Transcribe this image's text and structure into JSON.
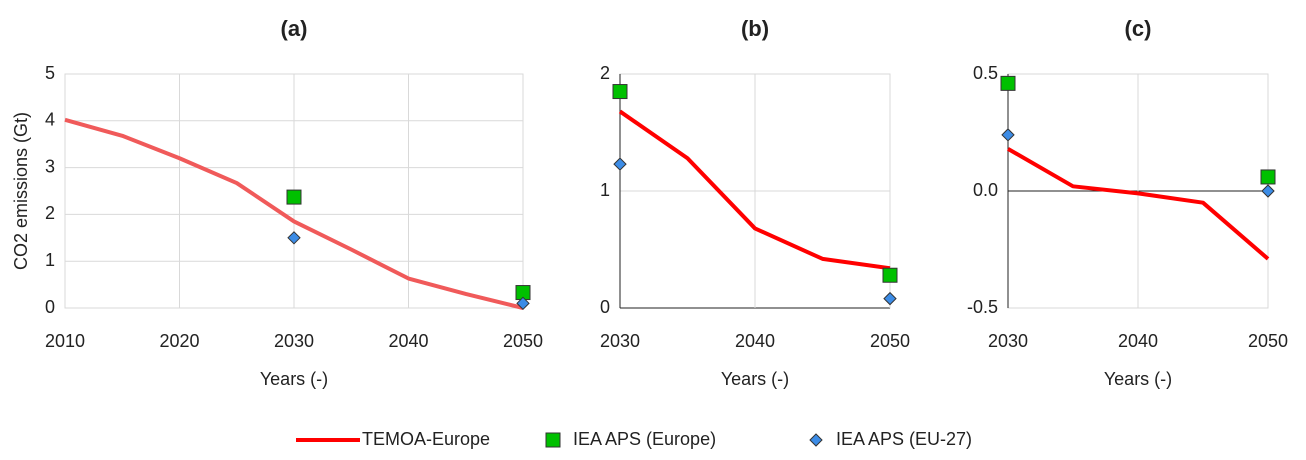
{
  "chart_data": [
    {
      "type": "line",
      "title": "(a)",
      "xlabel": "Years (-)",
      "ylabel": "CO2 emissions (Gt)",
      "xlim": [
        2010,
        2050
      ],
      "xticks": [
        2010,
        2020,
        2030,
        2040,
        2050
      ],
      "ylim": [
        0,
        5
      ],
      "yticks": [
        0,
        1,
        2,
        3,
        4,
        5
      ],
      "grid": true,
      "series": [
        {
          "name": "TEMOA-Europe",
          "color": "#f05a5a",
          "marker": "none",
          "x": [
            2010,
            2015,
            2020,
            2025,
            2030,
            2035,
            2040,
            2045,
            2050
          ],
          "values": [
            4.02,
            3.68,
            3.2,
            2.67,
            1.85,
            1.25,
            0.63,
            0.3,
            0.0
          ]
        },
        {
          "name": "IEA APS (Europe)",
          "color": "#00c000",
          "marker": "square",
          "x": [
            2030,
            2050
          ],
          "values": [
            2.37,
            0.33
          ]
        },
        {
          "name": "IEA APS (EU-27)",
          "color": "#3c8ce6",
          "marker": "diamond",
          "x": [
            2030,
            2050
          ],
          "values": [
            1.5,
            0.1
          ]
        }
      ]
    },
    {
      "type": "line",
      "title": "(b)",
      "xlabel": "Years (-)",
      "xlim": [
        2030,
        2050
      ],
      "xticks": [
        2030,
        2040,
        2050
      ],
      "ylim": [
        0,
        2
      ],
      "yticks": [
        0,
        1,
        2
      ],
      "grid": true,
      "series": [
        {
          "name": "TEMOA-Europe",
          "color": "#ff0000",
          "marker": "none",
          "x": [
            2030,
            2035,
            2040,
            2045,
            2050
          ],
          "values": [
            1.68,
            1.28,
            0.68,
            0.42,
            0.34
          ]
        },
        {
          "name": "IEA APS (Europe)",
          "color": "#00c000",
          "marker": "square",
          "x": [
            2030,
            2050
          ],
          "values": [
            1.85,
            0.28
          ]
        },
        {
          "name": "IEA APS (EU-27)",
          "color": "#3c8ce6",
          "marker": "diamond",
          "x": [
            2030,
            2050
          ],
          "values": [
            1.23,
            0.08
          ]
        }
      ]
    },
    {
      "type": "line",
      "title": "(c)",
      "xlabel": "Years (-)",
      "xlim": [
        2030,
        2050
      ],
      "xticks": [
        2030,
        2040,
        2050
      ],
      "ylim": [
        -0.5,
        0.5
      ],
      "yticks": [
        0.5,
        {
          "value": 0,
          "label": "0.0"
        },
        -0.5
      ],
      "grid": true,
      "series": [
        {
          "name": "TEMOA-Europe",
          "color": "#ff0000",
          "marker": "none",
          "x": [
            2030,
            2035,
            2040,
            2045,
            2050
          ],
          "values": [
            0.18,
            0.02,
            -0.01,
            -0.05,
            -0.29
          ]
        },
        {
          "name": "IEA APS (Europe)",
          "color": "#00c000",
          "marker": "square",
          "x": [
            2030,
            2050
          ],
          "values": [
            0.46,
            0.06
          ]
        },
        {
          "name": "IEA APS (EU-27)",
          "color": "#3c8ce6",
          "marker": "diamond",
          "x": [
            2030,
            2050
          ],
          "values": [
            0.24,
            0.0
          ]
        }
      ]
    }
  ]
}
